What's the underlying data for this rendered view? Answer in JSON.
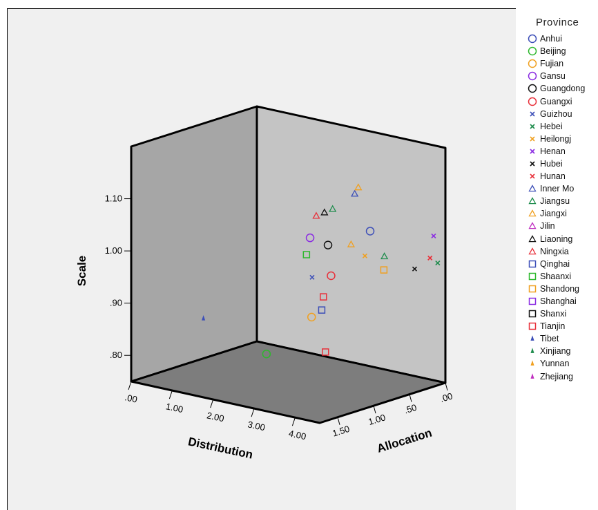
{
  "chart_data": {
    "type": "scatter",
    "chart_style": "3d",
    "title": "",
    "xlabel": "Distribution",
    "zlabel": "Allocation",
    "ylabel": "Scale",
    "x_ticks": [
      ".00",
      "1.00",
      "2.00",
      "3.00",
      "4.00"
    ],
    "z_ticks": [
      ".00",
      ".50",
      "1.00",
      "1.50"
    ],
    "y_ticks": [
      ".80",
      ".90",
      "1.00",
      "1.10"
    ],
    "xlim": [
      0,
      4.6
    ],
    "zlim": [
      0,
      1.75
    ],
    "ylim": [
      0.75,
      1.2
    ],
    "legend_title": "Province",
    "legend_placement": "right",
    "series": [
      {
        "name": "Anhui",
        "marker": "circle",
        "color": "#3d4fb8",
        "points": [
          {
            "x": 3.5,
            "z": 0.42,
            "y": 1.04
          }
        ]
      },
      {
        "name": "Beijing",
        "marker": "circle",
        "color": "#2db82d",
        "points": [
          {
            "x": 2.6,
            "z": 1.35,
            "y": 0.83
          }
        ]
      },
      {
        "name": "Fujian",
        "marker": "circle",
        "color": "#f0a020",
        "points": [
          {
            "x": 3.0,
            "z": 0.95,
            "y": 0.89
          }
        ]
      },
      {
        "name": "Gansu",
        "marker": "circle",
        "color": "#8a2be2",
        "points": [
          {
            "x": 2.7,
            "z": 0.8,
            "y": 1.03
          }
        ]
      },
      {
        "name": "Guangdong",
        "marker": "circle",
        "color": "#111111",
        "points": [
          {
            "x": 3.05,
            "z": 0.75,
            "y": 1.02
          }
        ]
      },
      {
        "name": "Guangxi",
        "marker": "circle",
        "color": "#e8303a",
        "points": [
          {
            "x": 3.3,
            "z": 0.85,
            "y": 0.97
          }
        ]
      },
      {
        "name": "Guizhou",
        "marker": "asterisk",
        "color": "#3d4fb8",
        "points": [
          {
            "x": 3.1,
            "z": 1.0,
            "y": 0.97
          }
        ]
      },
      {
        "name": "Hebei",
        "marker": "asterisk",
        "color": "#1e8c4c",
        "points": [
          {
            "x": 4.5,
            "z": 0.05,
            "y": 0.98
          }
        ]
      },
      {
        "name": "Heilongj",
        "marker": "asterisk",
        "color": "#f0a020",
        "points": [
          {
            "x": 3.6,
            "z": 0.55,
            "y": 1.0
          }
        ]
      },
      {
        "name": "Henan",
        "marker": "asterisk",
        "color": "#8a2be2",
        "points": [
          {
            "x": 4.4,
            "z": 0.05,
            "y": 1.03
          }
        ]
      },
      {
        "name": "Hubei",
        "marker": "asterisk",
        "color": "#111111",
        "points": [
          {
            "x": 4.2,
            "z": 0.2,
            "y": 0.97
          }
        ]
      },
      {
        "name": "Hunan",
        "marker": "asterisk",
        "color": "#e8303a",
        "points": [
          {
            "x": 4.4,
            "z": 0.1,
            "y": 0.99
          }
        ]
      },
      {
        "name": "Inner Mo",
        "marker": "triangle",
        "color": "#3d4fb8",
        "points": [
          {
            "x": 3.0,
            "z": 0.35,
            "y": 1.1
          }
        ]
      },
      {
        "name": "Jiangsu",
        "marker": "triangle",
        "color": "#1e8c4c",
        "points": [
          {
            "x": 3.9,
            "z": 0.45,
            "y": 1.0
          },
          {
            "x": 2.9,
            "z": 0.6,
            "y": 1.08
          }
        ]
      },
      {
        "name": "Jiangxi",
        "marker": "triangle",
        "color": "#f0a020",
        "points": [
          {
            "x": 3.35,
            "z": 0.6,
            "y": 1.02
          },
          {
            "x": 3.0,
            "z": 0.3,
            "y": 1.11
          }
        ]
      },
      {
        "name": "Jilin",
        "marker": "triangle",
        "color": "#c030c0",
        "points": []
      },
      {
        "name": "Liaoning",
        "marker": "triangle",
        "color": "#111111",
        "points": [
          {
            "x": 2.7,
            "z": 0.6,
            "y": 1.07
          }
        ]
      },
      {
        "name": "Ningxia",
        "marker": "triangle",
        "color": "#e8303a",
        "points": [
          {
            "x": 2.5,
            "z": 0.6,
            "y": 1.06
          }
        ]
      },
      {
        "name": "Qinghai",
        "marker": "square",
        "color": "#3d4fb8",
        "points": [
          {
            "x": 3.3,
            "z": 0.98,
            "y": 0.91
          }
        ]
      },
      {
        "name": "Shaanxi",
        "marker": "square",
        "color": "#2db82d",
        "points": [
          {
            "x": 2.7,
            "z": 0.85,
            "y": 1.0
          }
        ]
      },
      {
        "name": "Shandong",
        "marker": "square",
        "color": "#f0a020",
        "points": [
          {
            "x": 3.8,
            "z": 0.4,
            "y": 0.97
          }
        ]
      },
      {
        "name": "Shanghai",
        "marker": "square",
        "color": "#8a2be2",
        "points": []
      },
      {
        "name": "Shanxi",
        "marker": "square",
        "color": "#111111",
        "points": []
      },
      {
        "name": "Tianjin",
        "marker": "square",
        "color": "#e8303a",
        "points": [
          {
            "x": 3.2,
            "z": 0.9,
            "y": 0.93
          },
          {
            "x": 3.6,
            "z": 1.1,
            "y": 0.84
          }
        ]
      },
      {
        "name": "Tibet",
        "marker": "spike",
        "color": "#3d4fb8",
        "points": [
          {
            "x": 1.5,
            "z": 1.6,
            "y": 0.89
          }
        ]
      },
      {
        "name": "Xinjiang",
        "marker": "spike",
        "color": "#1e8c4c",
        "points": []
      },
      {
        "name": "Yunnan",
        "marker": "spike",
        "color": "#f0a020",
        "points": []
      },
      {
        "name": "Zhejiang",
        "marker": "spike",
        "color": "#c030c0",
        "points": []
      }
    ]
  }
}
